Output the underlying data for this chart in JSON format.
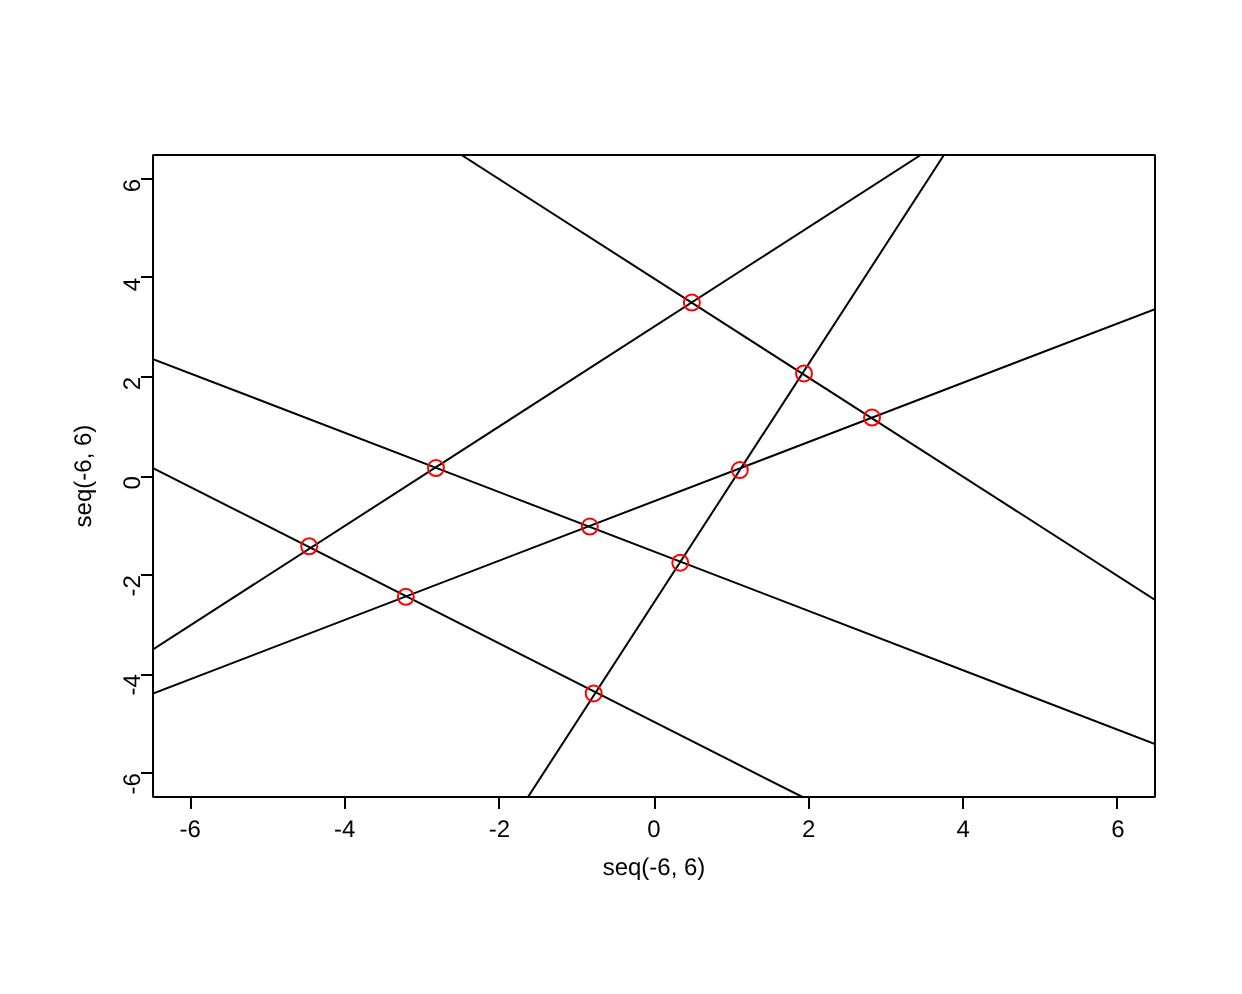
{
  "chart_data": {
    "type": "line",
    "xlabel": "seq(-6, 6)",
    "ylabel": "seq(-6, 6)",
    "xlim": [
      -6.48,
      6.48
    ],
    "ylim": [
      -6.48,
      6.48
    ],
    "xticks": [
      -6,
      -4,
      -2,
      0,
      2,
      4,
      6
    ],
    "yticks": [
      -6,
      -4,
      -2,
      0,
      2,
      4,
      6
    ],
    "grid": false,
    "series": [
      {
        "color": "#000000",
        "x": [
          -2.49,
          6.48
        ],
        "values": [
          6.48,
          -2.5
        ]
      },
      {
        "color": "#000000",
        "x": [
          -6.48,
          3.45
        ],
        "values": [
          -3.5,
          6.48
        ]
      },
      {
        "color": "#000000",
        "x": [
          -1.63,
          3.75
        ],
        "values": [
          -6.48,
          6.48
        ]
      },
      {
        "color": "#000000",
        "x": [
          -6.48,
          6.48
        ],
        "values": [
          -4.39,
          3.37
        ]
      },
      {
        "color": "#000000",
        "x": [
          -6.48,
          6.48
        ],
        "values": [
          2.36,
          -5.41
        ]
      },
      {
        "color": "#000000",
        "x": [
          -6.48,
          1.92
        ],
        "values": [
          0.16,
          -6.48
        ]
      },
      {
        "type": "scatter",
        "marker": "circle",
        "color": "#ff0000",
        "x": [
          0.49,
          1.94,
          2.82,
          -2.82,
          1.11,
          -4.46,
          -0.83,
          0.34,
          -3.21,
          -0.78
        ],
        "values": [
          3.5,
          2.07,
          1.18,
          0.16,
          0.12,
          -1.42,
          -1.02,
          -1.75,
          -2.44,
          -4.39
        ]
      }
    ]
  }
}
